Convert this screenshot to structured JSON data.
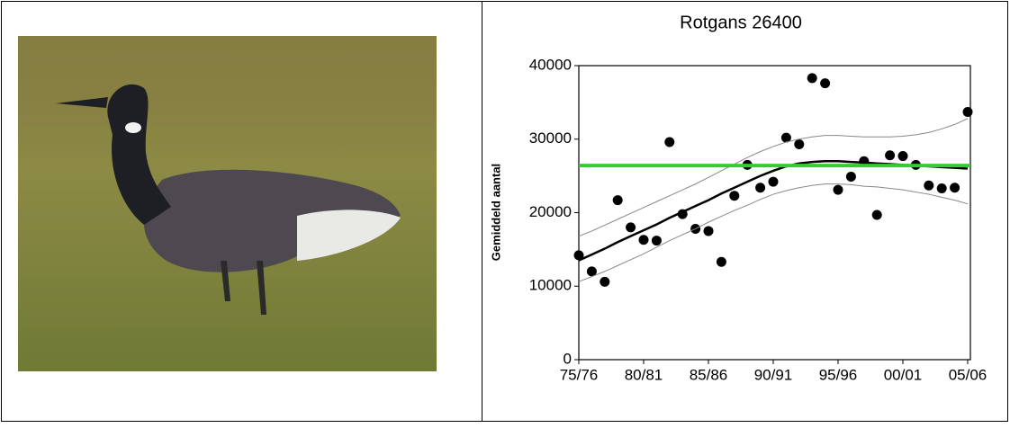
{
  "chart_data": {
    "type": "scatter",
    "title": "Rotgans 26400",
    "y_label": "Gemiddeld aantal",
    "categories": [
      "75/76",
      null,
      null,
      null,
      null,
      "80/81",
      null,
      null,
      null,
      null,
      "85/86",
      null,
      null,
      null,
      null,
      "90/91",
      null,
      null,
      null,
      null,
      "95/96",
      null,
      null,
      null,
      null,
      "00/01",
      null,
      null,
      null,
      null,
      "05/06"
    ],
    "series": [
      {
        "kind": "points",
        "color": "#000000",
        "values": [
          14200,
          12000,
          10600,
          21700,
          18000,
          16300,
          16200,
          29600,
          19800,
          17800,
          17500,
          13300,
          22300,
          26500,
          23400,
          24200,
          30200,
          29300,
          38300,
          37600,
          23100,
          24900,
          27000,
          19700,
          27800,
          27700,
          26500,
          23700,
          23300,
          23400,
          33700
        ]
      },
      {
        "kind": "line",
        "color": "#000000",
        "width": 2.5,
        "values": [
          13500,
          14300,
          15100,
          16000,
          16800,
          17600,
          18400,
          19300,
          20100,
          20900,
          21700,
          22600,
          23400,
          24200,
          25000,
          25700,
          26300,
          26700,
          26900,
          27000,
          27000,
          26900,
          26800,
          26700,
          26600,
          26500,
          26400,
          26300,
          26200,
          26100,
          26000
        ]
      },
      {
        "kind": "line",
        "color": "#888888",
        "width": 1,
        "values": [
          16800,
          17500,
          18300,
          19100,
          19900,
          20700,
          21500,
          22300,
          23100,
          23900,
          24800,
          25700,
          26600,
          27500,
          28300,
          29000,
          29600,
          30000,
          30300,
          30500,
          30500,
          30400,
          30300,
          30300,
          30300,
          30400,
          30600,
          30900,
          31400,
          32000,
          32800
        ]
      },
      {
        "kind": "line",
        "color": "#888888",
        "width": 1,
        "values": [
          10600,
          11300,
          12000,
          12800,
          13600,
          14400,
          15300,
          16200,
          17000,
          17800,
          18700,
          19500,
          20300,
          21000,
          21800,
          22500,
          23000,
          23400,
          23700,
          23900,
          23900,
          23800,
          23600,
          23500,
          23300,
          23100,
          22800,
          22500,
          22100,
          21700,
          21200
        ]
      }
    ],
    "reference_value": 26400,
    "reference_color": "#33cc33",
    "ylim": [
      0,
      40000
    ],
    "yticks": [
      0,
      10000,
      20000,
      30000,
      40000
    ]
  }
}
